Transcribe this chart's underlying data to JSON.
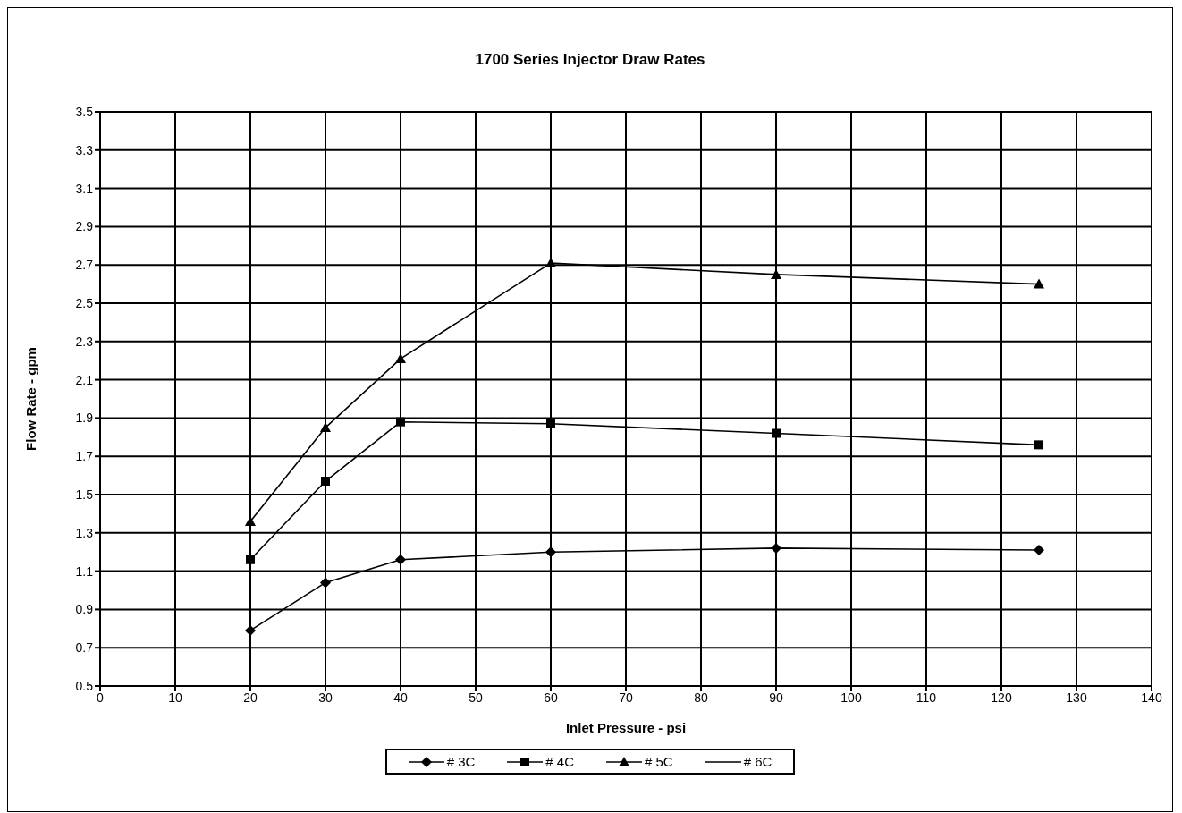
{
  "chart_data": {
    "type": "line",
    "title": "1700 Series Injector Draw Rates",
    "xlabel": "Inlet Pressure - psi",
    "ylabel": "Flow Rate - gpm",
    "x": [
      20,
      30,
      40,
      60,
      90,
      125
    ],
    "series": [
      {
        "name": "# 3C",
        "color": "#000000",
        "marker": "diamond",
        "values": [
          0.79,
          1.04,
          1.16,
          1.2,
          1.22,
          1.21
        ]
      },
      {
        "name": "# 4C",
        "color": "#000000",
        "marker": "square",
        "values": [
          1.16,
          1.57,
          1.88,
          1.87,
          1.82,
          1.76
        ]
      },
      {
        "name": "# 5C",
        "color": "#000000",
        "marker": "triangle",
        "values": [
          1.36,
          1.85,
          2.21,
          2.71,
          2.65,
          2.6
        ]
      },
      {
        "name": "# 6C",
        "color": "#000000",
        "marker": "none",
        "values": [
          null,
          null,
          null,
          null,
          null,
          null
        ]
      }
    ],
    "xlim": [
      0,
      140
    ],
    "xticks": [
      0,
      10,
      20,
      30,
      40,
      50,
      60,
      70,
      80,
      90,
      100,
      110,
      120,
      130,
      140
    ],
    "ylim": [
      0.5,
      3.5
    ],
    "yticks": [
      0.5,
      0.7,
      0.9,
      1.1,
      1.3,
      1.5,
      1.7,
      1.9,
      2.1,
      2.3,
      2.5,
      2.7,
      2.9,
      3.1,
      3.3,
      3.5
    ],
    "grid": true,
    "legend": "bottom",
    "line_style": "solid"
  }
}
